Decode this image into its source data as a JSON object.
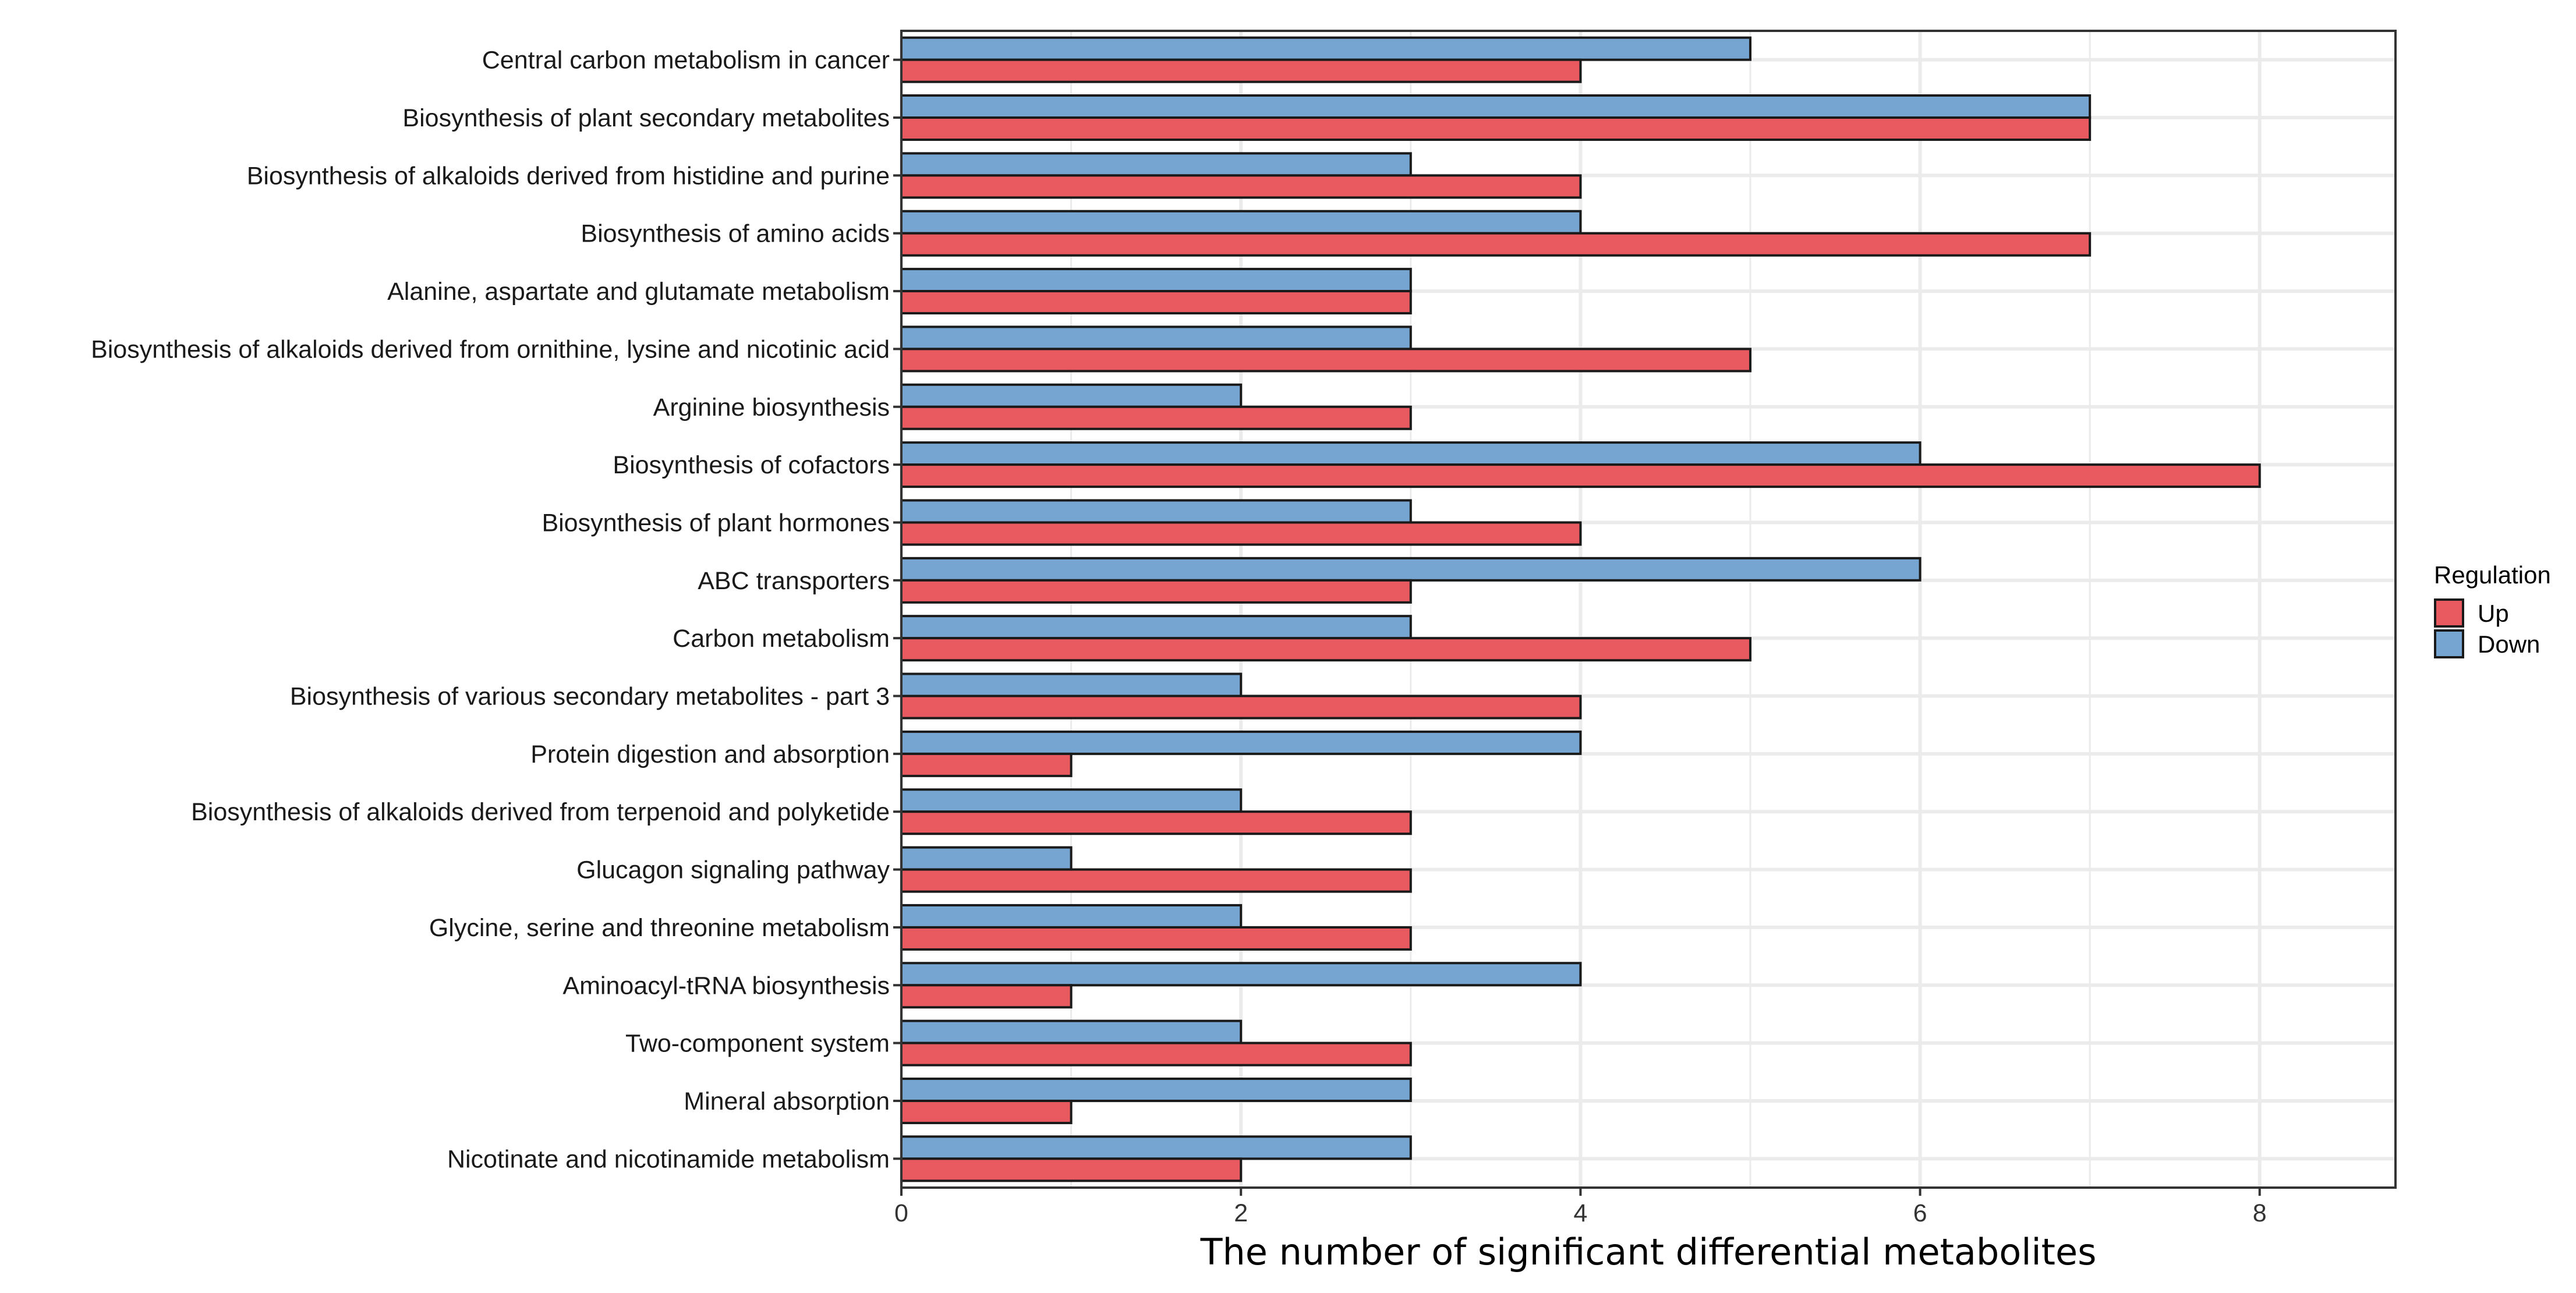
{
  "chart_data": {
    "type": "bar",
    "orientation": "horizontal",
    "title": "",
    "xlabel": "The number of significant differential metabolites",
    "ylabel": "",
    "xlim": [
      0,
      8.8
    ],
    "x_ticks": [
      0,
      2,
      4,
      6,
      8
    ],
    "x_tick_labels": [
      "0",
      "2",
      "4",
      "6",
      "8"
    ],
    "grid": true,
    "legend": {
      "title": "Regulation",
      "placement": "right",
      "entries": [
        "Up",
        "Down"
      ]
    },
    "categories": [
      "Central carbon metabolism in cancer",
      "Biosynthesis of plant secondary metabolites",
      "Biosynthesis of alkaloids derived from histidine and purine",
      "Biosynthesis of amino acids",
      "Alanine, aspartate and glutamate metabolism",
      "Biosynthesis of alkaloids derived from ornithine, lysine and nicotinic acid",
      "Arginine biosynthesis",
      "Biosynthesis of cofactors",
      "Biosynthesis of plant hormones",
      "ABC transporters",
      "Carbon metabolism",
      "Biosynthesis of various secondary metabolites - part 3",
      "Protein digestion and absorption",
      "Biosynthesis of alkaloids derived from terpenoid and polyketide",
      "Glucagon signaling pathway",
      "Glycine, serine and threonine metabolism",
      "Aminoacyl-tRNA biosynthesis",
      "Two-component system",
      "Mineral absorption",
      "Nicotinate and nicotinamide metabolism"
    ],
    "series": [
      {
        "name": "Down",
        "color": "#75A5D0",
        "values": [
          5,
          7,
          3,
          4,
          3,
          3,
          2,
          6,
          3,
          6,
          3,
          2,
          4,
          2,
          1,
          2,
          4,
          2,
          3,
          3
        ]
      },
      {
        "name": "Up",
        "color": "#E85A60",
        "values": [
          4,
          7,
          4,
          7,
          3,
          5,
          3,
          8,
          4,
          3,
          5,
          4,
          1,
          3,
          3,
          3,
          1,
          3,
          1,
          2
        ]
      }
    ]
  },
  "colors": {
    "panel_border": "#333333",
    "grid": "#EBEBEB",
    "bar_outline": "#1a1a1a"
  }
}
